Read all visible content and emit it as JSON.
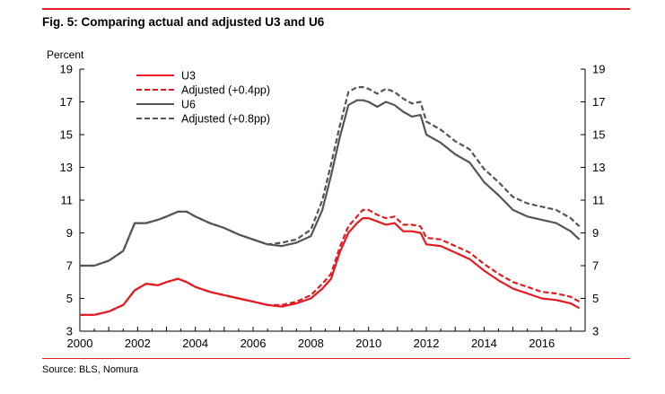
{
  "header": {
    "title": "Fig. 5: Comparing actual and adjusted U3 and U6"
  },
  "footer": {
    "source": "Source: BLS, Nomura"
  },
  "colors": {
    "u3": "#e31b23",
    "u6": "#555555",
    "rule": "#e31b23",
    "axis": "#000000"
  },
  "chart_data": {
    "type": "line",
    "title": "Fig. 5: Comparing actual and adjusted U3 and U6",
    "ylabel": "Percent",
    "xlabel": "",
    "xlim": [
      2000,
      2017.5
    ],
    "ylim": [
      3,
      19
    ],
    "x_ticks": [
      "2000",
      "2002",
      "2004",
      "2006",
      "2008",
      "2010",
      "2012",
      "2014",
      "2016"
    ],
    "y_ticks": [
      "3",
      "5",
      "7",
      "9",
      "11",
      "13",
      "15",
      "17",
      "19"
    ],
    "dual_y_axis": true,
    "legend_position": "top-left",
    "grid": false,
    "x": [
      2000.0,
      2000.5,
      2001.0,
      2001.5,
      2001.9,
      2002.3,
      2002.7,
      2003.0,
      2003.4,
      2003.7,
      2004.0,
      2004.5,
      2005.0,
      2005.5,
      2006.0,
      2006.5,
      2007.0,
      2007.5,
      2008.0,
      2008.4,
      2008.7,
      2009.0,
      2009.3,
      2009.6,
      2009.8,
      2010.0,
      2010.3,
      2010.6,
      2010.9,
      2011.2,
      2011.5,
      2011.8,
      2012.0,
      2012.5,
      2013.0,
      2013.5,
      2014.0,
      2014.5,
      2015.0,
      2015.5,
      2016.0,
      2016.5,
      2017.0,
      2017.3
    ],
    "series": [
      {
        "name": "U3",
        "style": "solid",
        "color": "#e31b23",
        "values": [
          4.0,
          4.0,
          4.2,
          4.6,
          5.5,
          5.9,
          5.8,
          6.0,
          6.2,
          6.0,
          5.7,
          5.4,
          5.2,
          5.0,
          4.8,
          4.6,
          4.5,
          4.7,
          5.0,
          5.6,
          6.2,
          7.8,
          9.0,
          9.6,
          9.9,
          9.9,
          9.7,
          9.5,
          9.6,
          9.1,
          9.1,
          9.0,
          8.3,
          8.2,
          7.8,
          7.4,
          6.7,
          6.1,
          5.6,
          5.3,
          5.0,
          4.9,
          4.7,
          4.4
        ]
      },
      {
        "name": "Adjusted (+0.4pp)",
        "style": "dashed",
        "color": "#e31b23",
        "values": [
          4.0,
          4.0,
          4.2,
          4.6,
          5.5,
          5.9,
          5.8,
          6.0,
          6.2,
          6.0,
          5.7,
          5.4,
          5.2,
          5.0,
          4.8,
          4.6,
          4.6,
          4.8,
          5.2,
          5.9,
          6.5,
          8.1,
          9.4,
          10.0,
          10.4,
          10.4,
          10.1,
          9.9,
          10.0,
          9.5,
          9.5,
          9.4,
          8.7,
          8.6,
          8.2,
          7.8,
          7.1,
          6.5,
          6.0,
          5.7,
          5.4,
          5.3,
          5.1,
          4.8
        ]
      },
      {
        "name": "U6",
        "style": "solid",
        "color": "#555555",
        "values": [
          7.0,
          7.0,
          7.3,
          7.9,
          9.6,
          9.6,
          9.8,
          10.0,
          10.3,
          10.3,
          10.0,
          9.6,
          9.3,
          8.9,
          8.6,
          8.3,
          8.2,
          8.4,
          8.8,
          10.4,
          12.5,
          14.8,
          16.8,
          17.1,
          17.1,
          17.0,
          16.7,
          17.0,
          16.8,
          16.4,
          16.1,
          16.2,
          15.0,
          14.5,
          13.8,
          13.3,
          12.1,
          11.3,
          10.4,
          10.0,
          9.8,
          9.6,
          9.1,
          8.6
        ]
      },
      {
        "name": "Adjusted (+0.8pp)",
        "style": "dashed",
        "color": "#555555",
        "values": [
          7.0,
          7.0,
          7.3,
          7.9,
          9.6,
          9.6,
          9.8,
          10.0,
          10.3,
          10.3,
          10.0,
          9.6,
          9.3,
          8.9,
          8.6,
          8.3,
          8.4,
          8.6,
          9.2,
          11.0,
          13.2,
          15.5,
          17.6,
          17.9,
          17.9,
          17.8,
          17.5,
          17.8,
          17.6,
          17.2,
          16.9,
          17.0,
          15.8,
          15.3,
          14.6,
          14.1,
          12.9,
          12.1,
          11.2,
          10.8,
          10.6,
          10.4,
          9.9,
          9.4
        ]
      }
    ]
  }
}
